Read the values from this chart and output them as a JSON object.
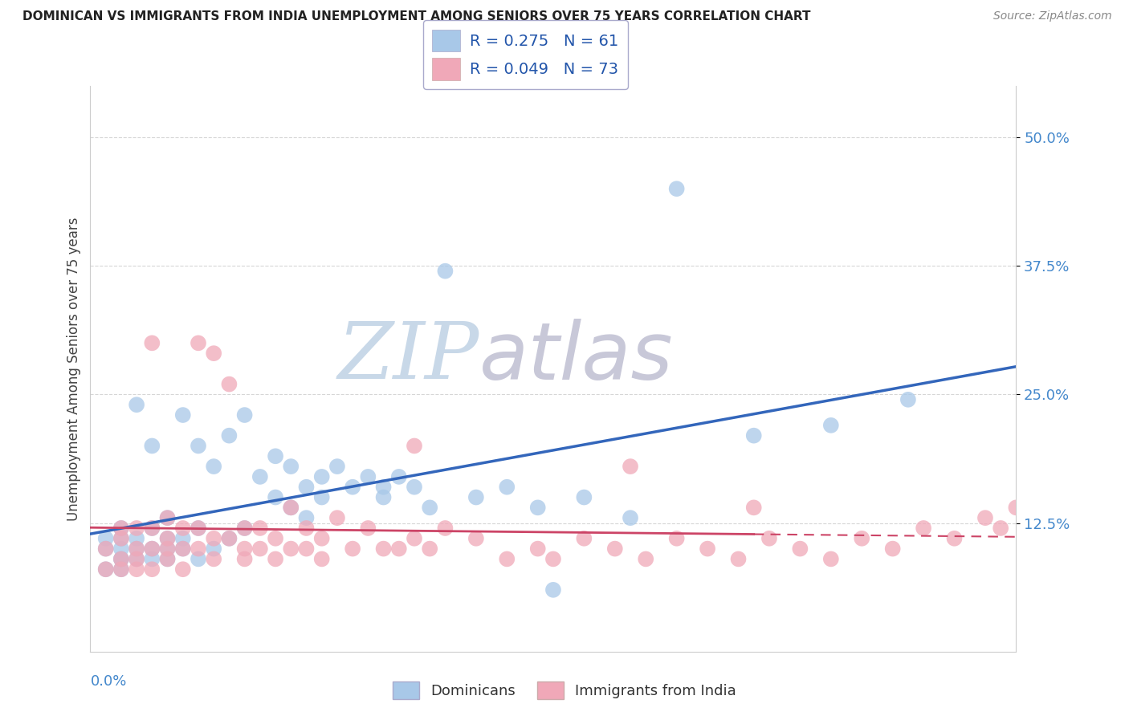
{
  "title": "DOMINICAN VS IMMIGRANTS FROM INDIA UNEMPLOYMENT AMONG SENIORS OVER 75 YEARS CORRELATION CHART",
  "source": "Source: ZipAtlas.com",
  "ylabel": "Unemployment Among Seniors over 75 years",
  "xlim": [
    0.0,
    0.6
  ],
  "ylim": [
    0.0,
    0.55
  ],
  "yticks": [
    0.125,
    0.25,
    0.375,
    0.5
  ],
  "ytick_labels": [
    "12.5%",
    "25.0%",
    "37.5%",
    "50.0%"
  ],
  "grid_color": "#cccccc",
  "background_color": "#ffffff",
  "watermark_zip": "ZIP",
  "watermark_atlas": "atlas",
  "watermark_color_zip": "#c8d8e8",
  "watermark_color_atlas": "#c8c8d8",
  "legend1_r": "R = 0.275",
  "legend1_n": "N = 61",
  "legend2_r": "R = 0.049",
  "legend2_n": "N = 73",
  "dominican_color": "#a8c8e8",
  "india_color": "#f0a8b8",
  "dominican_line_color": "#3366bb",
  "india_line_color": "#cc4466",
  "legend_text_color": "#2255aa",
  "dominican_scatter_x": [
    0.01,
    0.01,
    0.01,
    0.02,
    0.02,
    0.02,
    0.02,
    0.02,
    0.02,
    0.03,
    0.03,
    0.03,
    0.03,
    0.04,
    0.04,
    0.04,
    0.04,
    0.05,
    0.05,
    0.05,
    0.05,
    0.06,
    0.06,
    0.06,
    0.07,
    0.07,
    0.07,
    0.08,
    0.08,
    0.09,
    0.09,
    0.1,
    0.1,
    0.11,
    0.12,
    0.12,
    0.13,
    0.13,
    0.14,
    0.14,
    0.15,
    0.15,
    0.16,
    0.17,
    0.18,
    0.19,
    0.19,
    0.2,
    0.21,
    0.22,
    0.23,
    0.25,
    0.27,
    0.29,
    0.3,
    0.32,
    0.35,
    0.38,
    0.43,
    0.48,
    0.53
  ],
  "dominican_scatter_y": [
    0.1,
    0.08,
    0.11,
    0.09,
    0.12,
    0.1,
    0.08,
    0.11,
    0.09,
    0.1,
    0.24,
    0.09,
    0.11,
    0.1,
    0.12,
    0.09,
    0.2,
    0.1,
    0.11,
    0.09,
    0.13,
    0.1,
    0.23,
    0.11,
    0.2,
    0.09,
    0.12,
    0.18,
    0.1,
    0.21,
    0.11,
    0.23,
    0.12,
    0.17,
    0.19,
    0.15,
    0.18,
    0.14,
    0.16,
    0.13,
    0.17,
    0.15,
    0.18,
    0.16,
    0.17,
    0.16,
    0.15,
    0.17,
    0.16,
    0.14,
    0.37,
    0.15,
    0.16,
    0.14,
    0.06,
    0.15,
    0.13,
    0.45,
    0.21,
    0.22,
    0.245
  ],
  "india_scatter_x": [
    0.01,
    0.01,
    0.02,
    0.02,
    0.02,
    0.02,
    0.03,
    0.03,
    0.03,
    0.03,
    0.04,
    0.04,
    0.04,
    0.04,
    0.05,
    0.05,
    0.05,
    0.05,
    0.06,
    0.06,
    0.06,
    0.07,
    0.07,
    0.07,
    0.08,
    0.08,
    0.08,
    0.09,
    0.09,
    0.1,
    0.1,
    0.1,
    0.11,
    0.11,
    0.12,
    0.12,
    0.13,
    0.13,
    0.14,
    0.14,
    0.15,
    0.15,
    0.16,
    0.17,
    0.18,
    0.19,
    0.2,
    0.21,
    0.22,
    0.23,
    0.25,
    0.27,
    0.29,
    0.3,
    0.32,
    0.34,
    0.36,
    0.38,
    0.4,
    0.42,
    0.44,
    0.46,
    0.48,
    0.5,
    0.52,
    0.54,
    0.56,
    0.58,
    0.59,
    0.6,
    0.21,
    0.35,
    0.43
  ],
  "india_scatter_y": [
    0.1,
    0.08,
    0.09,
    0.11,
    0.08,
    0.12,
    0.1,
    0.08,
    0.12,
    0.09,
    0.3,
    0.1,
    0.12,
    0.08,
    0.11,
    0.09,
    0.13,
    0.1,
    0.1,
    0.08,
    0.12,
    0.3,
    0.1,
    0.12,
    0.29,
    0.11,
    0.09,
    0.26,
    0.11,
    0.12,
    0.1,
    0.09,
    0.12,
    0.1,
    0.11,
    0.09,
    0.14,
    0.1,
    0.12,
    0.1,
    0.11,
    0.09,
    0.13,
    0.1,
    0.12,
    0.1,
    0.1,
    0.11,
    0.1,
    0.12,
    0.11,
    0.09,
    0.1,
    0.09,
    0.11,
    0.1,
    0.09,
    0.11,
    0.1,
    0.09,
    0.11,
    0.1,
    0.09,
    0.11,
    0.1,
    0.12,
    0.11,
    0.13,
    0.12,
    0.14,
    0.2,
    0.18,
    0.14
  ]
}
